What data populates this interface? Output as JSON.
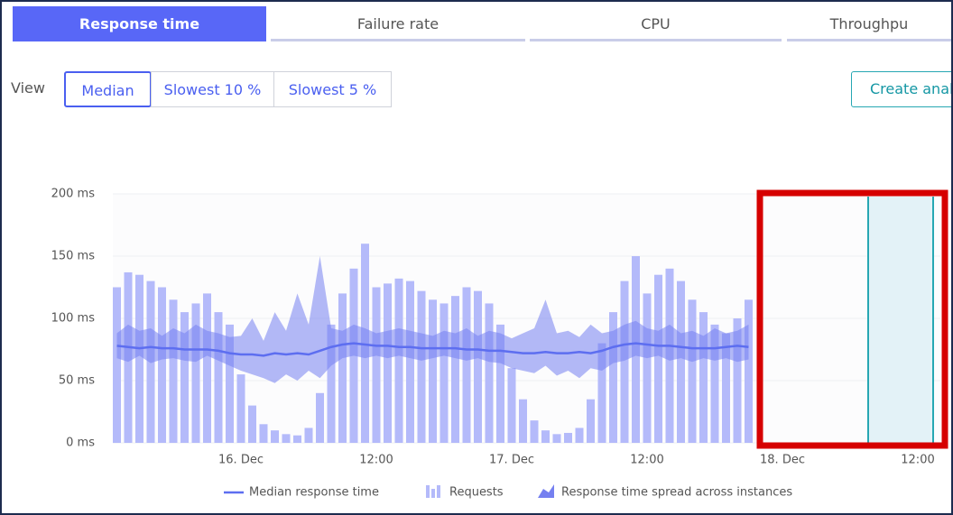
{
  "tabs": [
    "Response time",
    "Failure rate",
    "CPU",
    "Throughpu"
  ],
  "view": {
    "label": "View",
    "options": [
      "Median",
      "Slowest 10 %",
      "Slowest 5 %"
    ]
  },
  "create_button": "Create anal",
  "chart_data": {
    "type": "combo",
    "categories": [
      null,
      null,
      null,
      null,
      null,
      null,
      null,
      null,
      null,
      null,
      null,
      "16. Dec",
      null,
      null,
      null,
      null,
      null,
      null,
      null,
      null,
      null,
      null,
      null,
      "12:00",
      null,
      null,
      null,
      null,
      null,
      null,
      null,
      null,
      null,
      null,
      null,
      "17. Dec",
      null,
      null,
      null,
      null,
      null,
      null,
      null,
      null,
      null,
      null,
      null,
      "12:00",
      null,
      null,
      null,
      null,
      null,
      null,
      null,
      null,
      null,
      null,
      null,
      "18. Dec",
      null,
      null,
      null,
      null,
      null,
      null,
      null,
      null,
      null,
      null,
      null,
      "12:00",
      null
    ],
    "ylim": [
      0,
      200
    ],
    "yticks": [
      {
        "value": 0,
        "label": "0 ms"
      },
      {
        "value": 50,
        "label": "50 ms"
      },
      {
        "value": 100,
        "label": "100 ms"
      },
      {
        "value": 150,
        "label": "150 ms"
      },
      {
        "value": 200,
        "label": "200 ms"
      }
    ],
    "grid": true,
    "series": [
      {
        "name": "Median response time",
        "type": "line",
        "color": "#5d6ef0",
        "values": [
          78,
          77,
          76,
          77,
          76,
          76,
          75,
          75,
          75,
          74,
          72,
          71,
          71,
          70,
          72,
          71,
          72,
          71,
          74,
          77,
          79,
          80,
          79,
          78,
          78,
          77,
          77,
          76,
          76,
          76,
          76,
          75,
          75,
          74,
          74,
          73,
          72,
          72,
          73,
          72,
          72,
          73,
          72,
          74,
          77,
          79,
          80,
          79,
          78,
          78,
          77,
          76,
          76,
          76,
          77,
          78,
          77,
          null,
          null,
          null,
          null,
          null,
          null,
          null,
          null,
          null,
          null,
          null,
          null,
          null,
          null,
          null,
          null
        ]
      },
      {
        "name": "Requests",
        "type": "bar",
        "color": "#b4bafa",
        "values": [
          125,
          137,
          135,
          130,
          125,
          115,
          105,
          112,
          120,
          105,
          95,
          55,
          30,
          15,
          10,
          7,
          6,
          12,
          40,
          95,
          120,
          140,
          160,
          125,
          128,
          132,
          130,
          122,
          115,
          112,
          118,
          125,
          122,
          112,
          95,
          60,
          35,
          18,
          10,
          7,
          8,
          12,
          35,
          80,
          105,
          130,
          150,
          120,
          135,
          140,
          130,
          115,
          105,
          95,
          88,
          100,
          115,
          null,
          null,
          null,
          null,
          null,
          null,
          null,
          null,
          null,
          null,
          null,
          null,
          null,
          null,
          null,
          null
        ]
      },
      {
        "name": "Response time spread across instances",
        "type": "range",
        "color": "#7580f0",
        "low": [
          68,
          65,
          70,
          64,
          67,
          68,
          66,
          65,
          70,
          66,
          62,
          58,
          55,
          52,
          48,
          55,
          50,
          58,
          52,
          62,
          68,
          70,
          68,
          70,
          68,
          70,
          68,
          66,
          68,
          70,
          68,
          66,
          68,
          65,
          64,
          60,
          58,
          56,
          62,
          54,
          58,
          52,
          60,
          58,
          64,
          66,
          70,
          68,
          70,
          66,
          68,
          65,
          68,
          66,
          68,
          65,
          67,
          null,
          null,
          null,
          null,
          null,
          null,
          null,
          null,
          null,
          null,
          null,
          null,
          null,
          null,
          null,
          null
        ],
        "high": [
          88,
          95,
          90,
          92,
          86,
          92,
          88,
          95,
          90,
          88,
          85,
          86,
          100,
          82,
          105,
          90,
          120,
          95,
          150,
          92,
          90,
          95,
          92,
          88,
          90,
          92,
          90,
          88,
          86,
          90,
          88,
          92,
          86,
          90,
          88,
          84,
          88,
          92,
          115,
          88,
          90,
          85,
          95,
          88,
          90,
          95,
          98,
          92,
          90,
          95,
          88,
          90,
          86,
          92,
          88,
          90,
          95,
          null,
          null,
          null,
          null,
          null,
          null,
          null,
          null,
          null,
          null,
          null,
          null,
          null,
          null,
          null,
          null
        ]
      }
    ]
  }
}
